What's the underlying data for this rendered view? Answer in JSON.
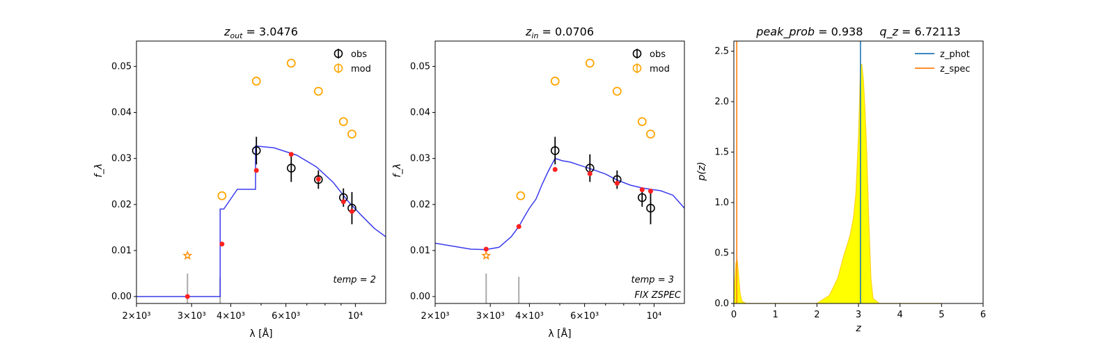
{
  "chart_data": [
    {
      "type": "scatter",
      "title": "z_{out} = 3.0476",
      "title_parts": {
        "var": "z",
        "sub": "out",
        "rest": " = 3.0476"
      },
      "xlabel": "λ [Å]",
      "ylabel": "f_λ",
      "xscale": "log",
      "xlim": [
        2000,
        12500
      ],
      "ylim": [
        -0.0015,
        0.0555
      ],
      "xticks": [
        {
          "value": 2000,
          "label": "2×10³"
        },
        {
          "value": 3000,
          "label": "3×10³"
        },
        {
          "value": 4000,
          "label": "4×10³"
        },
        {
          "value": 6000,
          "label": "6×10³"
        },
        {
          "value": 10000,
          "label": "10⁴"
        }
      ],
      "yticks": [
        0.0,
        0.01,
        0.02,
        0.03,
        0.04,
        0.05
      ],
      "legend": {
        "position": "top-right",
        "entries": [
          {
            "label": "obs",
            "color": "#000000"
          },
          {
            "label": "mod",
            "color": "#ffa500"
          }
        ]
      },
      "annotation": "temp = 2",
      "series": [
        {
          "name": "obs",
          "color": "#000000",
          "x": [
            4830,
            6240,
            7620,
            9160,
            9750
          ],
          "y": [
            0.0317,
            0.0279,
            0.0254,
            0.0215,
            0.0192
          ],
          "yerr": [
            0.003,
            0.003,
            0.002,
            0.002,
            0.0035
          ]
        },
        {
          "name": "mod",
          "color": "#ffa500",
          "x": [
            3750,
            4830,
            6240,
            7620,
            9160,
            9750
          ],
          "y": [
            0.0219,
            0.0468,
            0.0507,
            0.0446,
            0.038,
            0.0353
          ]
        },
        {
          "name": "upper limit",
          "color": "#ff8c00",
          "x": [
            2910
          ],
          "y": [
            0.0089
          ]
        },
        {
          "name": "model fluxes",
          "color": "#ff2020",
          "x": [
            2910,
            3750,
            4830,
            6240,
            7620,
            9160,
            9750
          ],
          "y": [
            0.0,
            0.0114,
            0.0274,
            0.0309,
            0.0255,
            0.0206,
            0.0185
          ]
        },
        {
          "name": "template",
          "color": "#3a3aef",
          "x": [
            2000,
            3700,
            3700,
            3800,
            3800,
            4200,
            4200,
            4800,
            4800,
            5000,
            5500,
            6500,
            7500,
            8500,
            9500,
            10500,
            11500,
            12500
          ],
          "y": [
            0.0,
            0.0,
            0.019,
            0.019,
            0.019,
            0.0233,
            0.0233,
            0.0233,
            0.0327,
            0.0326,
            0.0323,
            0.0307,
            0.0282,
            0.0248,
            0.0206,
            0.0175,
            0.0148,
            0.013
          ]
        }
      ],
      "filters": {
        "color": "#aaaaaa",
        "x": [
          2910,
          3700
        ],
        "top": [
          0.005,
          0.0043
        ]
      }
    },
    {
      "type": "scatter",
      "title": "z_{in} = 0.0706",
      "title_parts": {
        "var": "z",
        "sub": "in",
        "rest": " = 0.0706"
      },
      "xlabel": "λ [Å]",
      "ylabel": "f_λ",
      "xscale": "log",
      "xlim": [
        2000,
        12500
      ],
      "ylim": [
        -0.0015,
        0.0555
      ],
      "xticks": [
        {
          "value": 2000,
          "label": "2×10³"
        },
        {
          "value": 3000,
          "label": "3×10³"
        },
        {
          "value": 4000,
          "label": "4×10³"
        },
        {
          "value": 6000,
          "label": "6×10³"
        },
        {
          "value": 10000,
          "label": "10⁴"
        }
      ],
      "yticks": [
        0.0,
        0.01,
        0.02,
        0.03,
        0.04,
        0.05
      ],
      "legend": {
        "position": "top-right",
        "entries": [
          {
            "label": "obs",
            "color": "#000000"
          },
          {
            "label": "mod",
            "color": "#ffa500"
          }
        ]
      },
      "annotation": "temp = 3",
      "annotation2": "FIX ZSPEC",
      "series": [
        {
          "name": "obs",
          "color": "#000000",
          "x": [
            4830,
            6240,
            7620,
            9160,
            9750
          ],
          "y": [
            0.0317,
            0.0279,
            0.0254,
            0.0215,
            0.0192
          ],
          "yerr": [
            0.003,
            0.003,
            0.002,
            0.002,
            0.0035
          ]
        },
        {
          "name": "mod",
          "color": "#ffa500",
          "x": [
            3750,
            4830,
            6240,
            7620,
            9160,
            9750
          ],
          "y": [
            0.0219,
            0.0468,
            0.0507,
            0.0446,
            0.038,
            0.0353
          ]
        },
        {
          "name": "upper limit",
          "color": "#ff8c00",
          "x": [
            2910
          ],
          "y": [
            0.0089
          ]
        },
        {
          "name": "model fluxes",
          "color": "#ff2020",
          "x": [
            2910,
            3700,
            4830,
            6240,
            7620,
            9160,
            9750
          ],
          "y": [
            0.0103,
            0.0152,
            0.0276,
            0.0267,
            0.0246,
            0.0232,
            0.0229
          ]
        },
        {
          "name": "template",
          "color": "#3a3aef",
          "x": [
            2000,
            2300,
            2600,
            2900,
            3200,
            3500,
            3700,
            3850,
            4000,
            4200,
            4400,
            4600,
            4830,
            5100,
            5400,
            5800,
            6240,
            7000,
            7620,
            8400,
            9160,
            9750,
            10500,
            11500,
            12500
          ],
          "y": [
            0.0116,
            0.0109,
            0.0103,
            0.0102,
            0.0107,
            0.013,
            0.0152,
            0.0173,
            0.0192,
            0.0212,
            0.0245,
            0.0273,
            0.03,
            0.0295,
            0.0292,
            0.0285,
            0.0278,
            0.0266,
            0.0253,
            0.0242,
            0.0236,
            0.0233,
            0.023,
            0.022,
            0.0192
          ]
        }
      ],
      "filters": {
        "color": "#aaaaaa",
        "x": [
          2910,
          3700
        ],
        "top": [
          0.005,
          0.0043
        ]
      }
    },
    {
      "type": "area",
      "title_parts": {
        "left": "peak_prob",
        "left_rest": " = 0.938",
        "right": "q_z",
        "right_rest": " = 6.72113"
      },
      "title": "peak_prob = 0.938     q_z = 6.72113",
      "xlabel": "z",
      "ylabel": "p(z)",
      "xlim": [
        0,
        6
      ],
      "ylim": [
        0,
        2.6
      ],
      "xticks": [
        0,
        1,
        2,
        3,
        4,
        5,
        6
      ],
      "yticks": [
        0.0,
        0.5,
        1.0,
        1.5,
        2.0,
        2.5
      ],
      "legend": {
        "position": "top-right",
        "entries": [
          {
            "label": "z_phot",
            "color": "#1f77b4"
          },
          {
            "label": "z_spec",
            "color": "#ff7f0e"
          }
        ]
      },
      "z_phot": 3.0476,
      "z_spec": 0.0706,
      "pz": {
        "fill": "#ffff00",
        "line": "#ffd21e",
        "x": [
          0.0,
          0.02,
          0.05,
          0.08,
          0.11,
          0.15,
          0.2,
          0.3,
          1.0,
          2.0,
          2.3,
          2.5,
          2.65,
          2.72,
          2.8,
          2.88,
          2.94,
          3.0,
          3.05,
          3.08,
          3.12,
          3.16,
          3.2,
          3.25,
          3.3,
          3.35,
          3.5,
          4.0,
          5.0
        ],
        "y": [
          0.0,
          0.2,
          0.4,
          0.43,
          0.3,
          0.1,
          0.02,
          0.0,
          0.0,
          0.0,
          0.08,
          0.25,
          0.48,
          0.57,
          0.68,
          0.85,
          1.1,
          1.65,
          2.36,
          2.37,
          2.2,
          1.9,
          1.5,
          0.8,
          0.25,
          0.05,
          0.0,
          0.0,
          0.0
        ]
      }
    }
  ]
}
